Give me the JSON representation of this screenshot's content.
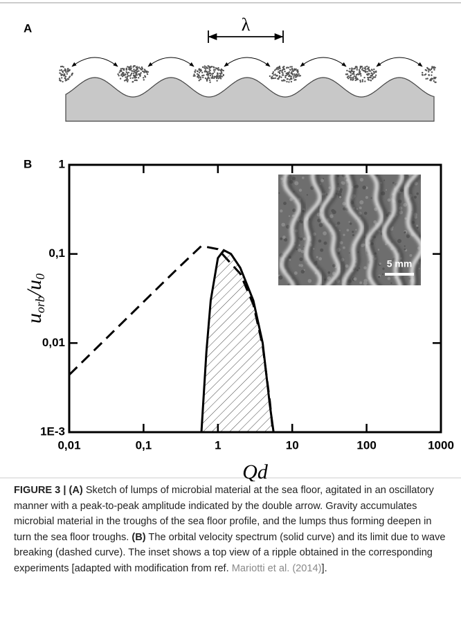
{
  "panel_a": {
    "label": "A",
    "wavelength": "λ"
  },
  "chart_data": {
    "type": "line",
    "panel_label": "B",
    "xlabel": "Qd",
    "ylabel": [
      "u",
      "orb",
      "/u",
      "0"
    ],
    "xlog": true,
    "ylog": true,
    "xlim": [
      0.01,
      1000
    ],
    "ylim": [
      0.001,
      1
    ],
    "xticks": [
      {
        "value": 0.01,
        "label": "0,01"
      },
      {
        "value": 0.1,
        "label": "0,1"
      },
      1,
      10,
      100,
      1000
    ],
    "yticks": [
      {
        "value": 0.001,
        "label": "1E-3"
      },
      {
        "value": 0.01,
        "label": "0,01"
      },
      {
        "value": 0.1,
        "label": "0,1"
      },
      1
    ],
    "series": [
      {
        "style": "dashed",
        "color": "#000000",
        "hatch": false,
        "x": [
          0.01,
          0.03,
          0.1,
          0.3,
          0.6,
          1,
          2,
          3,
          4,
          5,
          5.5
        ],
        "values": [
          0.0044,
          0.0108,
          0.029,
          0.071,
          0.123,
          0.113,
          0.06,
          0.027,
          0.0093,
          0.0022,
          0.001
        ]
      },
      {
        "style": "solid",
        "color": "#000000",
        "hatch": true,
        "x": [
          0.6,
          0.7,
          0.8,
          1,
          1.2,
          1.5,
          2,
          3,
          4,
          5,
          5.6
        ],
        "values": [
          0.001,
          0.008,
          0.03,
          0.09,
          0.11,
          0.1,
          0.07,
          0.03,
          0.01,
          0.002,
          0.001
        ]
      }
    ],
    "inset_scale": "5 mm"
  },
  "caption": {
    "segments": [
      {
        "text": "FIGURE 3 | (A)",
        "bold": true
      },
      {
        "text": " Sketch of lumps of microbial material at the sea floor, agitated in an oscillatory manner with a peak-to-peak amplitude indicated by the double arrow. Gravity accumulates microbial material in the troughs of the sea floor profile, and the lumps thus forming deepen in turn the sea floor troughs. "
      },
      {
        "text": "(B)",
        "bold": true
      },
      {
        "text": " The orbital velocity spectrum (solid curve) and its limit due to wave breaking (dashed curve). The inset shows a top view of a ripple obtained in the corresponding experiments [adapted with modification from ref. "
      },
      {
        "text": "Mariotti et al. (2014)",
        "link": true
      },
      {
        "text": "]."
      }
    ]
  }
}
